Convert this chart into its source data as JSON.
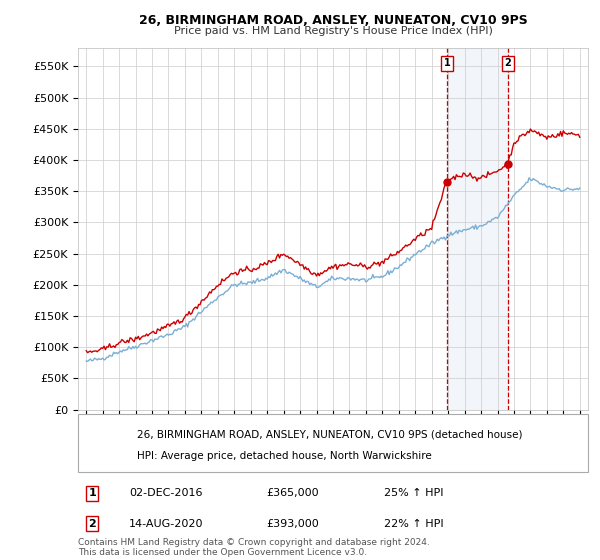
{
  "title": "26, BIRMINGHAM ROAD, ANSLEY, NUNEATON, CV10 9PS",
  "subtitle": "Price paid vs. HM Land Registry's House Price Index (HPI)",
  "ytick_values": [
    0,
    50000,
    100000,
    150000,
    200000,
    250000,
    300000,
    350000,
    400000,
    450000,
    500000,
    550000
  ],
  "ylim": [
    0,
    580000
  ],
  "hpi_color": "#7bafd4",
  "price_color": "#cc0000",
  "marker1_date": 2016.92,
  "marker1_value": 365000,
  "marker1_label": "1",
  "marker1_date_str": "02-DEC-2016",
  "marker1_price": "£365,000",
  "marker1_hpi": "25% ↑ HPI",
  "marker2_date": 2020.62,
  "marker2_value": 393000,
  "marker2_label": "2",
  "marker2_date_str": "14-AUG-2020",
  "marker2_price": "£393,000",
  "marker2_hpi": "22% ↑ HPI",
  "legend_price_label": "26, BIRMINGHAM ROAD, ANSLEY, NUNEATON, CV10 9PS (detached house)",
  "legend_hpi_label": "HPI: Average price, detached house, North Warwickshire",
  "footnote": "Contains HM Land Registry data © Crown copyright and database right 2024.\nThis data is licensed under the Open Government Licence v3.0.",
  "vline_color": "#cc0000",
  "bg_color": "#ffffff",
  "grid_color": "#cccccc",
  "highlight_color": "#ccddf0"
}
